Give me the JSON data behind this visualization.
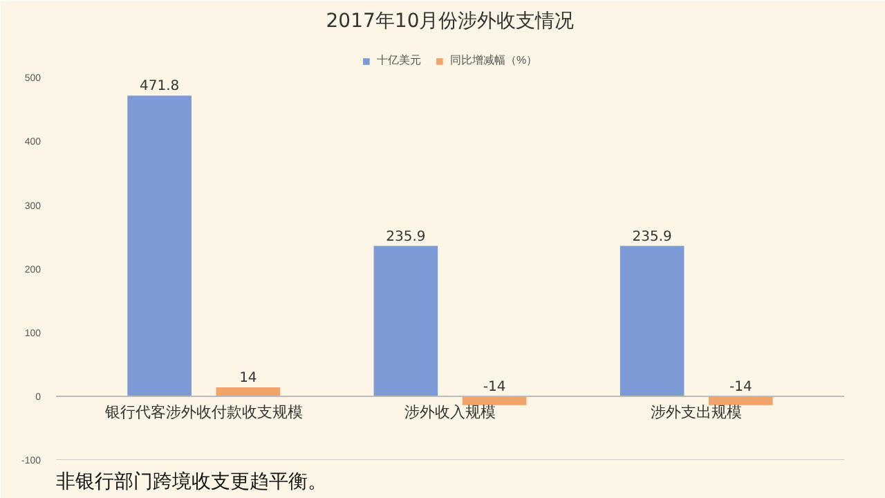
{
  "chart_data": {
    "type": "bar",
    "title": "2017年10月份涉外收支情况",
    "categories": [
      "银行代客涉外收付款收支规模",
      "涉外收入规模",
      "涉外支出规模"
    ],
    "series": [
      {
        "name": "十亿美元",
        "color": "#7b9ad6",
        "values": [
          471.8,
          235.9,
          235.9
        ]
      },
      {
        "name": "同比增减幅（%）",
        "color": "#f0a36a",
        "values": [
          14,
          -14,
          -14
        ]
      }
    ],
    "ylim": [
      -100,
      560
    ],
    "yticks": [
      -100,
      0,
      100,
      200,
      300,
      400,
      500
    ],
    "grid": false,
    "legend": "top",
    "data_labels": true,
    "annotations": [
      "非银行部门跨境收支更趋平衡。"
    ]
  }
}
